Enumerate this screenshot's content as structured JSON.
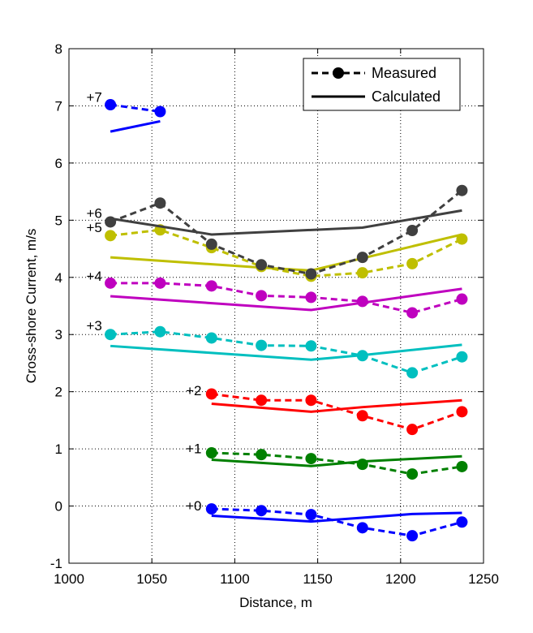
{
  "chart_data": {
    "type": "line",
    "title": "",
    "xlabel": "Distance, m",
    "ylabel": "Cross-shore Current, m/s",
    "xlim": [
      1000,
      1250
    ],
    "ylim": [
      -1,
      8
    ],
    "xticks": [
      1000,
      1050,
      1100,
      1150,
      1200,
      1250
    ],
    "yticks": [
      -1,
      0,
      1,
      2,
      3,
      4,
      5,
      6,
      7,
      8
    ],
    "grid": true,
    "legend": {
      "placement": "top-right",
      "entries": [
        {
          "label": "Measured",
          "style": "dashed-with-markers"
        },
        {
          "label": "Calculated",
          "style": "solid"
        }
      ]
    },
    "series": [
      {
        "offset_label": "+0",
        "color": "#0000ff",
        "label_at": [
          1080,
          -0.05
        ],
        "measured": {
          "x": [
            1086,
            1116,
            1146,
            1177,
            1207,
            1237
          ],
          "y": [
            -0.05,
            -0.08,
            -0.15,
            -0.38,
            -0.52,
            -0.28
          ]
        },
        "calculated": {
          "x": [
            1086,
            1146,
            1207,
            1237
          ],
          "y": [
            -0.17,
            -0.27,
            -0.14,
            -0.12
          ]
        }
      },
      {
        "offset_label": "+1",
        "color": "#008000",
        "label_at": [
          1080,
          0.95
        ],
        "measured": {
          "x": [
            1086,
            1116,
            1146,
            1177,
            1207,
            1237
          ],
          "y": [
            0.93,
            0.9,
            0.83,
            0.73,
            0.56,
            0.69
          ]
        },
        "calculated": {
          "x": [
            1086,
            1146,
            1177,
            1237
          ],
          "y": [
            0.81,
            0.7,
            0.78,
            0.87
          ]
        }
      },
      {
        "offset_label": "+2",
        "color": "#ff0000",
        "label_at": [
          1080,
          1.97
        ],
        "measured": {
          "x": [
            1086,
            1116,
            1146,
            1177,
            1207,
            1237
          ],
          "y": [
            1.96,
            1.85,
            1.85,
            1.58,
            1.34,
            1.65
          ]
        },
        "calculated": {
          "x": [
            1086,
            1146,
            1177,
            1237
          ],
          "y": [
            1.79,
            1.65,
            1.73,
            1.85
          ]
        }
      },
      {
        "offset_label": "+3",
        "color": "#00bfbf",
        "label_at": [
          1020,
          3.1
        ],
        "measured": {
          "x": [
            1025,
            1055,
            1086,
            1116,
            1146,
            1177,
            1207,
            1237
          ],
          "y": [
            3.0,
            3.05,
            2.94,
            2.81,
            2.8,
            2.63,
            2.33,
            2.61
          ]
        },
        "calculated": {
          "x": [
            1025,
            1146,
            1177,
            1237
          ],
          "y": [
            2.8,
            2.56,
            2.64,
            2.82
          ]
        }
      },
      {
        "offset_label": "+4",
        "color": "#bf00bf",
        "label_at": [
          1020,
          3.97
        ],
        "measured": {
          "x": [
            1025,
            1055,
            1086,
            1116,
            1146,
            1177,
            1207,
            1237
          ],
          "y": [
            3.9,
            3.9,
            3.85,
            3.68,
            3.65,
            3.58,
            3.38,
            3.62
          ]
        },
        "calculated": {
          "x": [
            1025,
            1146,
            1237
          ],
          "y": [
            3.67,
            3.43,
            3.8
          ]
        }
      },
      {
        "offset_label": "+5",
        "color": "#bfbf00",
        "label_at": [
          1020,
          4.82
        ],
        "measured": {
          "x": [
            1025,
            1055,
            1086,
            1116,
            1146,
            1177,
            1207,
            1237
          ],
          "y": [
            4.73,
            4.83,
            4.52,
            4.19,
            4.02,
            4.08,
            4.24,
            4.67
          ]
        },
        "calculated": {
          "x": [
            1025,
            1116,
            1146,
            1237
          ],
          "y": [
            4.35,
            4.17,
            4.12,
            4.75
          ]
        }
      },
      {
        "offset_label": "+6",
        "color": "#404040",
        "label_at": [
          1020,
          5.07
        ],
        "measured": {
          "x": [
            1025,
            1055,
            1086,
            1116,
            1146,
            1177,
            1207,
            1237
          ],
          "y": [
            4.97,
            5.3,
            4.58,
            4.22,
            4.06,
            4.35,
            4.82,
            5.52
          ]
        },
        "calculated": {
          "x": [
            1025,
            1086,
            1177,
            1237
          ],
          "y": [
            5.03,
            4.75,
            4.87,
            5.17
          ]
        }
      },
      {
        "offset_label": "+7",
        "color": "#0000ff",
        "label_at": [
          1020,
          7.1
        ],
        "measured": {
          "x": [
            1025,
            1055
          ],
          "y": [
            7.02,
            6.9
          ]
        },
        "calculated": {
          "x": [
            1025,
            1055
          ],
          "y": [
            6.55,
            6.73
          ]
        }
      }
    ]
  }
}
